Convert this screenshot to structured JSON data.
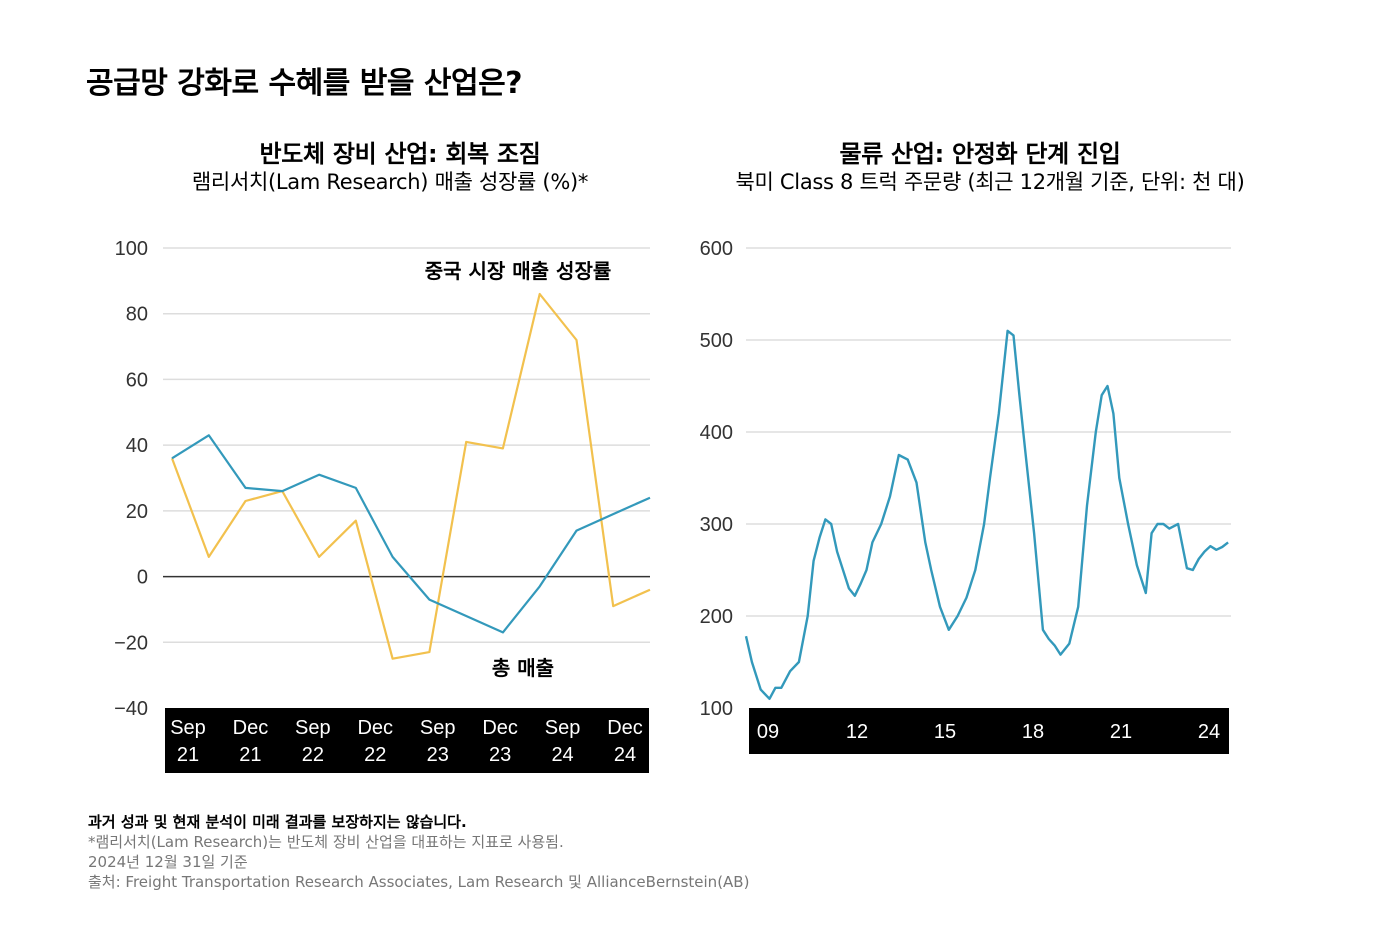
{
  "page": {
    "title": "공급망 강화로 수혜를 받을 산업은?",
    "footer": {
      "disclaimer": "과거 성과 및 현재 분석이 미래 결과를 보장하지는 않습니다.",
      "note": "*램리서치(Lam Research)는 반도체 장비 산업을 대표하는 지표로 사용됨.",
      "as_of": "2024년 12월 31일 기준",
      "source": "출처: Freight Transportation Research Associates, Lam Research 및 AllianceBernstein(AB)"
    }
  },
  "colors": {
    "total_revenue": "#3399BB",
    "china_revenue": "#F2C14E",
    "truck_orders": "#3399BB",
    "grid": "#DDDDDD",
    "zero_line": "#333333",
    "axis_band": "#000000"
  },
  "chart_data": [
    {
      "type": "line",
      "title": "반도체 장비 산업: 회복 조짐",
      "subtitle": "램리서치(Lam Research) 매출 성장률 (%)*",
      "xlabel": "",
      "ylabel": "",
      "ylim": [
        -40,
        100
      ],
      "yticks": [
        100,
        80,
        60,
        40,
        20,
        0,
        -20,
        -40
      ],
      "ytick_labels": [
        "100",
        "80",
        "60",
        "40",
        "20",
        "0",
        "−20",
        "−40"
      ],
      "grid": true,
      "xtick_labels": [
        [
          "Sep",
          "21"
        ],
        [
          "Dec",
          "21"
        ],
        [
          "Sep",
          "22"
        ],
        [
          "Dec",
          "22"
        ],
        [
          "Sep",
          "23"
        ],
        [
          "Dec",
          "23"
        ],
        [
          "Sep",
          "24"
        ],
        [
          "Dec",
          "24"
        ]
      ],
      "x": [
        0,
        1,
        2,
        3,
        4,
        5,
        6,
        7,
        8,
        9,
        10,
        11,
        12,
        13
      ],
      "series": [
        {
          "name": "총 매출",
          "values": [
            36,
            43,
            27,
            26,
            31,
            27,
            6,
            -7,
            -12,
            -17,
            -3,
            14,
            19,
            24
          ]
        },
        {
          "name": "중국 시장 매출 성장률",
          "values": [
            36,
            6,
            23,
            26,
            6,
            17,
            -25,
            -23,
            41,
            39,
            86,
            72,
            -9,
            -4
          ]
        }
      ]
    },
    {
      "type": "line",
      "title": "물류 산업: 안정화 단계 진입",
      "subtitle": "북미 Class 8 트럭 주문량 (최근 12개월 기준, 단위: 천 대)",
      "xlabel": "",
      "ylabel": "",
      "ylim": [
        100,
        600
      ],
      "yticks": [
        600,
        500,
        400,
        300,
        200,
        100
      ],
      "grid": true,
      "xtick_labels": [
        "09",
        "12",
        "15",
        "18",
        "21",
        "24"
      ],
      "xtick_years": [
        2009,
        2012,
        2015,
        2018,
        2021,
        2024
      ],
      "x_range": [
        2008.8,
        2025.3
      ],
      "series": [
        {
          "name": "",
          "x": [
            2008.8,
            2009.0,
            2009.3,
            2009.6,
            2009.8,
            2010.0,
            2010.3,
            2010.6,
            2010.9,
            2011.1,
            2011.3,
            2011.5,
            2011.7,
            2011.9,
            2012.1,
            2012.3,
            2012.5,
            2012.7,
            2012.9,
            2013.1,
            2013.4,
            2013.7,
            2014.0,
            2014.3,
            2014.6,
            2014.9,
            2015.1,
            2015.4,
            2015.7,
            2016.0,
            2016.3,
            2016.6,
            2016.9,
            2017.1,
            2017.4,
            2017.7,
            2017.9,
            2018.1,
            2018.3,
            2018.6,
            2018.9,
            2019.1,
            2019.3,
            2019.5,
            2019.8,
            2020.1,
            2020.4,
            2020.7,
            2020.9,
            2021.1,
            2021.3,
            2021.5,
            2021.8,
            2022.1,
            2022.4,
            2022.6,
            2022.8,
            2023.0,
            2023.2,
            2023.5,
            2023.8,
            2024.0,
            2024.2,
            2024.4,
            2024.6,
            2024.8,
            2025.0,
            2025.2
          ],
          "values": [
            178,
            150,
            120,
            110,
            122,
            122,
            140,
            150,
            200,
            260,
            285,
            305,
            300,
            270,
            250,
            230,
            222,
            235,
            250,
            280,
            300,
            330,
            375,
            370,
            345,
            280,
            250,
            210,
            185,
            200,
            220,
            250,
            300,
            350,
            420,
            510,
            505,
            440,
            380,
            290,
            185,
            175,
            168,
            158,
            170,
            210,
            320,
            400,
            440,
            450,
            420,
            350,
            300,
            255,
            225,
            290,
            300,
            300,
            295,
            300,
            252,
            250,
            262,
            270,
            276,
            272,
            275,
            280
          ]
        }
      ]
    }
  ],
  "annotations": {
    "china_label": "중국 시장 매출 성장률",
    "total_label": "총 매출"
  }
}
